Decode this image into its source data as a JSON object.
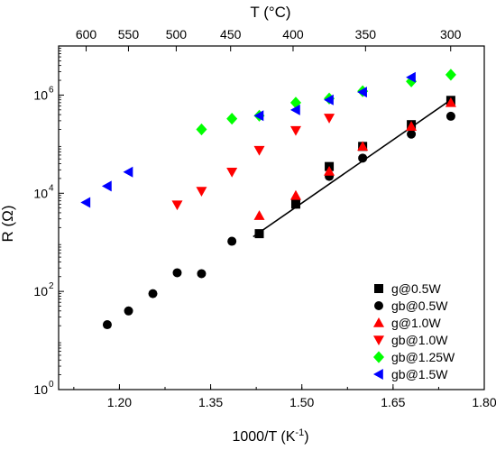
{
  "chart_data": {
    "type": "scatter",
    "title": "",
    "xlabel_base": "1000/T (K",
    "xlabel_sup": "-1",
    "xlabel_end": ")",
    "top_xlabel": "T (°C)",
    "ylabel": "R (Ω)",
    "xlim": [
      1.1,
      1.8
    ],
    "ylim_log10": [
      0,
      7
    ],
    "y_scale": "log",
    "x_ticks": [
      1.2,
      1.35,
      1.5,
      1.65,
      1.8
    ],
    "x_tick_labels": [
      "1.20",
      "1.35",
      "1.50",
      "1.65",
      "1.80"
    ],
    "y_ticks_exp": [
      0,
      2,
      4,
      6
    ],
    "y_tick_labels": [
      {
        "base": "10",
        "exp": "0"
      },
      {
        "base": "10",
        "exp": "2"
      },
      {
        "base": "10",
        "exp": "4"
      },
      {
        "base": "10",
        "exp": "6"
      }
    ],
    "top_ticks_C": [
      600,
      550,
      500,
      450,
      400,
      350,
      300
    ],
    "top_tick_labels": [
      "600",
      "550",
      "500",
      "450",
      "400",
      "350",
      "300"
    ],
    "legend_position": "bottom-right",
    "grid": false,
    "series": [
      {
        "name": "g@0.5W",
        "marker": "square",
        "color": "#000000",
        "x": [
          1.43,
          1.49,
          1.545,
          1.6,
          1.68,
          1.745
        ],
        "y": [
          1500,
          6000,
          35000,
          90000,
          250000,
          780000
        ]
      },
      {
        "name": "gb@0.5W",
        "marker": "circle",
        "color": "#000000",
        "x": [
          1.18,
          1.215,
          1.255,
          1.295,
          1.335,
          1.385,
          1.49,
          1.545,
          1.6,
          1.68,
          1.745
        ],
        "y": [
          21,
          40,
          90,
          240,
          230,
          1050,
          6000,
          22000,
          52000,
          160000,
          370000
        ]
      },
      {
        "name": "g@1.0W",
        "marker": "triangle-up",
        "color": "#ff0000",
        "x": [
          1.43,
          1.49,
          1.545,
          1.6,
          1.68,
          1.745
        ],
        "y": [
          3500,
          9000,
          28000,
          90000,
          230000,
          700000
        ]
      },
      {
        "name": "gb@1.0W",
        "marker": "triangle-down",
        "color": "#ff0000",
        "x": [
          1.295,
          1.335,
          1.385,
          1.43,
          1.49,
          1.545
        ],
        "y": [
          5800,
          11000,
          27000,
          75000,
          190000,
          340000
        ]
      },
      {
        "name": "gb@1.25W",
        "marker": "diamond",
        "color": "#00ff00",
        "x": [
          1.335,
          1.385,
          1.43,
          1.49,
          1.545,
          1.6,
          1.68,
          1.745
        ],
        "y": [
          200000,
          330000,
          380000,
          700000,
          850000,
          1200000,
          1900000,
          2600000
        ]
      },
      {
        "name": "gb@1.5W",
        "marker": "triangle-left",
        "color": "#0000ff",
        "x": [
          1.145,
          1.18,
          1.215,
          1.43,
          1.49,
          1.545,
          1.6,
          1.68
        ],
        "y": [
          6500,
          14000,
          27000,
          380000,
          500000,
          800000,
          1150000,
          2300000
        ]
      }
    ],
    "fit_line": {
      "color": "#000000",
      "x": [
        1.42,
        1.745
      ],
      "y": [
        1300,
        800000
      ]
    }
  }
}
